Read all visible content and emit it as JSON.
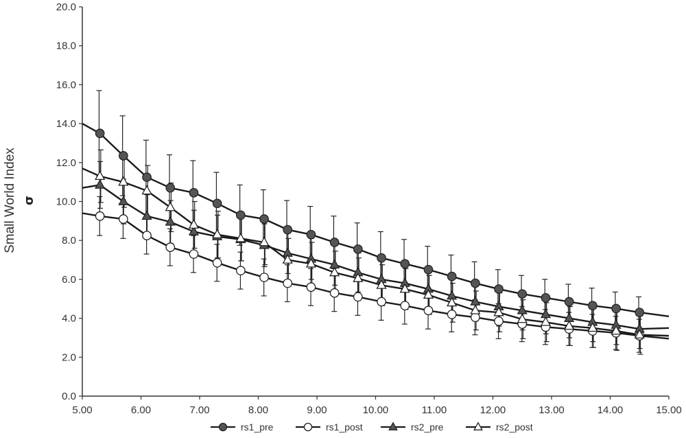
{
  "chart_data": {
    "type": "line",
    "title": "",
    "xlabel": "",
    "ylabel": "Small World Index",
    "ylabel_symbol": "σ",
    "xlim": [
      5,
      15
    ],
    "ylim": [
      0,
      20
    ],
    "x_ticks": [
      5,
      6,
      7,
      8,
      9,
      10,
      11,
      12,
      13,
      14,
      15
    ],
    "x_tick_labels": [
      "5.00",
      "6.00",
      "7.00",
      "8.00",
      "9.00",
      "10.00",
      "11.00",
      "12.00",
      "13.00",
      "14.00",
      "15.00"
    ],
    "y_ticks": [
      0,
      2,
      4,
      6,
      8,
      10,
      12,
      14,
      16,
      18,
      20
    ],
    "y_tick_labels": [
      "0.0",
      "2.0",
      "4.0",
      "6.0",
      "8.0",
      "10.0",
      "12.0",
      "14.0",
      "16.0",
      "18.0",
      "20.0"
    ],
    "grid": false,
    "legend_position": "bottom",
    "x": [
      5.3,
      5.7,
      6.1,
      6.5,
      6.9,
      7.3,
      7.7,
      8.1,
      8.5,
      8.9,
      9.3,
      9.7,
      10.1,
      10.5,
      10.9,
      11.3,
      11.7,
      12.1,
      12.5,
      12.9,
      13.3,
      13.7,
      14.1,
      14.5
    ],
    "series": [
      {
        "name": "rs1_pre",
        "marker": "circle",
        "marker_color": "#555555",
        "start_value": 14.0,
        "end_value": 4.1,
        "values": [
          13.5,
          12.35,
          11.25,
          10.7,
          10.45,
          9.9,
          9.3,
          9.1,
          8.55,
          8.3,
          7.9,
          7.55,
          7.1,
          6.8,
          6.5,
          6.15,
          5.8,
          5.5,
          5.25,
          5.05,
          4.85,
          4.65,
          4.5,
          4.3
        ],
        "error": [
          2.2,
          2.05,
          1.9,
          1.7,
          1.65,
          1.6,
          1.55,
          1.5,
          1.5,
          1.45,
          1.35,
          1.35,
          1.35,
          1.25,
          1.2,
          1.1,
          1.1,
          1.0,
          0.95,
          0.95,
          0.9,
          0.9,
          0.85,
          0.8
        ]
      },
      {
        "name": "rs1_post",
        "marker": "circle",
        "marker_color": "#ffffff",
        "start_value": 9.4,
        "end_value": 2.95,
        "values": [
          9.25,
          9.1,
          8.25,
          7.65,
          7.3,
          6.85,
          6.45,
          6.1,
          5.8,
          5.6,
          5.3,
          5.1,
          4.85,
          4.65,
          4.4,
          4.2,
          4.05,
          3.85,
          3.7,
          3.55,
          3.45,
          3.35,
          3.25,
          3.1
        ],
        "error": [
          1.0,
          1.0,
          0.95,
          0.95,
          0.95,
          0.95,
          0.95,
          0.95,
          0.95,
          0.95,
          0.95,
          0.95,
          0.95,
          0.95,
          0.95,
          0.9,
          0.9,
          0.9,
          0.9,
          0.9,
          0.85,
          0.85,
          0.85,
          0.85
        ]
      },
      {
        "name": "rs2_pre",
        "marker": "triangle",
        "marker_color": "#555555",
        "start_value": 10.7,
        "end_value": 3.5,
        "values": [
          10.85,
          10.0,
          9.25,
          8.95,
          8.45,
          8.2,
          8.05,
          7.75,
          7.35,
          7.05,
          6.75,
          6.35,
          6.0,
          5.8,
          5.5,
          5.15,
          4.85,
          4.6,
          4.4,
          4.2,
          4.0,
          3.8,
          3.65,
          3.45
        ],
        "error": [
          1.2,
          1.15,
          1.1,
          1.1,
          1.1,
          1.1,
          1.1,
          1.1,
          1.05,
          1.05,
          1.05,
          1.0,
          1.0,
          1.0,
          1.0,
          1.0,
          1.0,
          1.0,
          1.0,
          1.0,
          1.0,
          1.0,
          1.0,
          1.0
        ]
      },
      {
        "name": "rs2_post",
        "marker": "triangle",
        "marker_color": "#ffffff",
        "start_value": 11.7,
        "end_value": 3.1,
        "values": [
          11.3,
          11.0,
          10.55,
          9.7,
          8.8,
          8.3,
          8.1,
          7.9,
          7.0,
          6.8,
          6.35,
          6.05,
          5.7,
          5.5,
          5.2,
          4.8,
          4.4,
          4.3,
          3.95,
          3.8,
          3.6,
          3.5,
          3.35,
          3.15
        ],
        "error": [
          1.35,
          1.3,
          1.3,
          1.25,
          1.2,
          1.2,
          1.15,
          1.15,
          1.1,
          1.1,
          1.1,
          1.05,
          1.05,
          1.05,
          1.0,
          1.0,
          1.0,
          1.0,
          1.0,
          1.0,
          1.0,
          1.0,
          1.0,
          1.0
        ]
      }
    ]
  }
}
